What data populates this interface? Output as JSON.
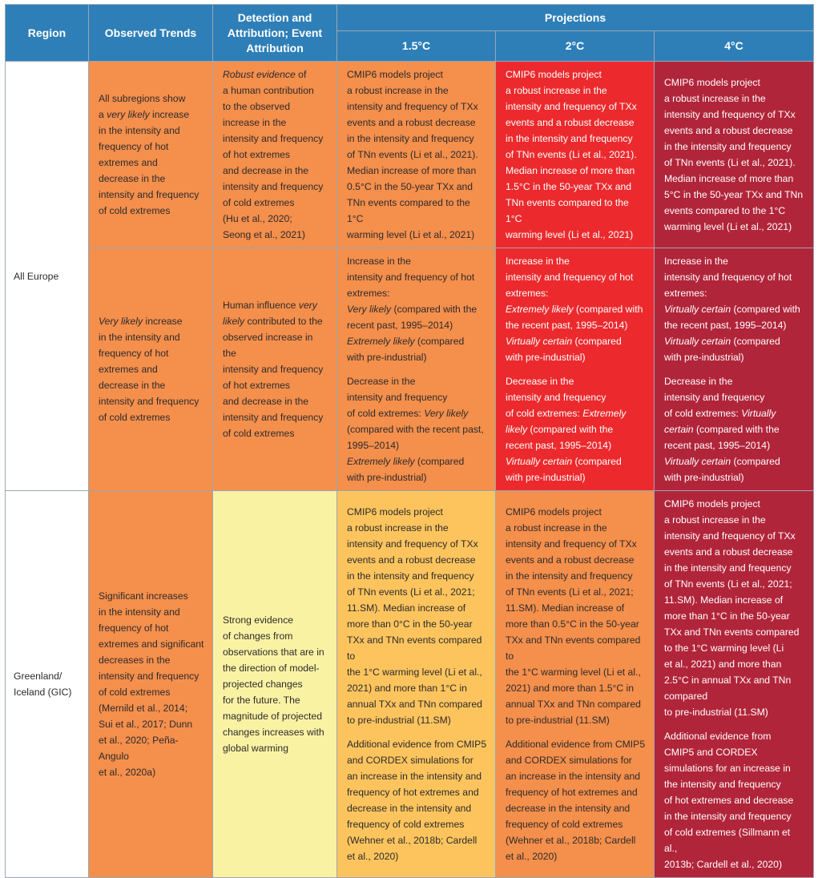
{
  "headers": {
    "region": "Region",
    "observed": "Observed Trends",
    "detection": "Detection and Attribution; Event Attribution",
    "projections": "Projections",
    "w15": "1.5°C",
    "w2": "2°C",
    "w4": "4°C"
  },
  "colors": {
    "header": "#2e7fb8",
    "orange": "#f58f4c",
    "red": "#ec2a2e",
    "dark_red": "#b1253a",
    "light_yellow": "#faf2a3",
    "gold": "#fdc45e"
  },
  "rows": {
    "all_europe": {
      "region": "All Europe",
      "r1": {
        "observed": [
          {
            "t": "All subregions show\na "
          },
          {
            "t": "very likely",
            "i": true
          },
          {
            "t": " increase\nin the intensity and\nfrequency of hot\nextremes and\ndecrease in the\nintensity and frequency\nof cold extremes"
          }
        ],
        "detection": [
          {
            "t": "Robust evidence",
            "i": true
          },
          {
            "t": " of\na human contribution\nto the observed\nincrease in the\nintensity and frequency\nof hot extremes\nand decrease in the\nintensity and frequency\nof cold extremes\n(Hu et al., 2020;\nSeong et al., 2021)"
          }
        ],
        "w15": [
          [
            {
              "t": "CMIP6 models project\na robust increase in the\nintensity and frequency of TXx\nevents and a robust decrease\nin the intensity and frequency\nof TNn events (Li et al., 2021).\nMedian increase of more than\n0.5°C in the 50-year TXx and\nTNn events compared to the 1°C\nwarming level (Li et al., 2021)"
            }
          ]
        ],
        "w2": [
          [
            {
              "t": "CMIP6 models project\na robust increase in the\nintensity and frequency of TXx\nevents and a robust decrease\nin the intensity and frequency\nof TNn events (Li et al., 2021).\nMedian increase of more than\n1.5°C in the 50-year TXx and\nTNn events compared to the 1°C\nwarming level (Li et al., 2021)"
            }
          ]
        ],
        "w4": [
          [
            {
              "t": "CMIP6 models project\na robust increase in the\nintensity and frequency of TXx\nevents and a robust decrease\nin the intensity and frequency\nof TNn events (Li et al., 2021).\nMedian increase of more than\n5°C in the 50-year TXx and TNn\nevents compared to the 1°C\nwarming level (Li et al., 2021)"
            }
          ]
        ]
      },
      "r2": {
        "observed": [
          {
            "t": "Very likely",
            "i": true
          },
          {
            "t": " increase\nin the intensity and\nfrequency of hot\nextremes and\ndecrease in the\nintensity and frequency\nof cold extremes"
          }
        ],
        "detection": [
          {
            "t": "Human influence "
          },
          {
            "t": "very\nlikely",
            "i": true
          },
          {
            "t": " contributed to the\nobserved increase in the\nintensity and frequency\nof hot extremes\nand decrease in the\nintensity and frequency\nof cold extremes"
          }
        ],
        "w15": [
          [
            {
              "t": "Increase in the\nintensity and frequency of hot\nextremes:\n"
            },
            {
              "t": "Very likely",
              "i": true
            },
            {
              "t": " (compared with the\nrecent past, 1995–2014)\n"
            },
            {
              "t": "Extremely likely",
              "i": true
            },
            {
              "t": " (compared\nwith pre-industrial)"
            }
          ],
          [
            {
              "t": "Decrease in the\nintensity and frequency\nof cold extremes: "
            },
            {
              "t": "Very likely",
              "i": true
            },
            {
              "t": "\n(compared with the recent past,\n1995–2014)\n"
            },
            {
              "t": "Extremely likely",
              "i": true
            },
            {
              "t": " (compared\nwith pre-industrial)"
            }
          ]
        ],
        "w2": [
          [
            {
              "t": "Increase in the\nintensity and frequency of hot\nextremes:\n"
            },
            {
              "t": "Extremely likely",
              "i": true
            },
            {
              "t": " (compared with\nthe recent past, 1995–2014)\n"
            },
            {
              "t": "Virtually certain",
              "i": true
            },
            {
              "t": " (compared\nwith pre-industrial)"
            }
          ],
          [
            {
              "t": "Decrease in the\nintensity and frequency\nof cold extremes: "
            },
            {
              "t": "Extremely\nlikely",
              "i": true
            },
            {
              "t": " (compared with the\nrecent past, 1995–2014)\n"
            },
            {
              "t": "Virtually certain",
              "i": true
            },
            {
              "t": " (compared\nwith pre-industrial)"
            }
          ]
        ],
        "w4": [
          [
            {
              "t": "Increase in the\nintensity and frequency of hot\nextremes:\n"
            },
            {
              "t": "Virtually certain",
              "i": true
            },
            {
              "t": " (compared with\nthe recent past, 1995–2014)\n"
            },
            {
              "t": "Virtually certain",
              "i": true
            },
            {
              "t": " (compared\nwith pre-industrial)"
            }
          ],
          [
            {
              "t": "Decrease in the\nintensity and frequency\nof cold extremes: "
            },
            {
              "t": "Virtually\ncertain",
              "i": true
            },
            {
              "t": " (compared with the\nrecent past, 1995–2014)\n"
            },
            {
              "t": "Virtually certain",
              "i": true
            },
            {
              "t": " (compared\nwith pre-industrial)"
            }
          ]
        ]
      }
    },
    "gic": {
      "region": "Greenland/\nIceland (GIC)",
      "observed": [
        {
          "t": "Significant increases\nin the intensity and\nfrequency of hot\nextremes and significant\ndecreases in the\nintensity and frequency\nof cold extremes\n(Mernild et al., 2014;\nSui et al., 2017; Dunn\net al., 2020; Peña-Angulo\net al., 2020a)"
        }
      ],
      "detection": [
        {
          "t": "Strong evidence\nof changes from\nobservations that are in\nthe direction of model-\nprojected changes\nfor the future. The\nmagnitude of projected\nchanges increases with\nglobal warming"
        }
      ],
      "w15": [
        [
          {
            "t": "CMIP6 models project\na robust increase in the\nintensity and frequency of TXx\nevents and a robust decrease\nin the intensity and frequency\nof TNn events (Li et al., 2021;\n11.SM). Median increase of\nmore than 0°C in the 50-year\nTXx and TNn events compared to\nthe 1°C warming level (Li et al.,\n2021) and more than 1°C in\nannual TXx and TNn compared\nto pre-industrial (11.SM)"
          }
        ],
        [
          {
            "t": "Additional evidence from CMIP5\nand CORDEX simulations for\nan increase in the intensity and\nfrequency of hot extremes and\ndecrease in the intensity and\nfrequency of cold extremes\n(Wehner et al., 2018b; Cardell\net al., 2020)"
          }
        ]
      ],
      "w2": [
        [
          {
            "t": "CMIP6 models project\na robust increase in the\nintensity and frequency of TXx\nevents and a robust decrease\nin the intensity and frequency\nof TNn events (Li et al., 2021;\n11.SM). Median increase of\nmore than 0.5°C in the 50-year\nTXx and TNn events compared to\nthe 1°C warming level (Li et al.,\n2021) and more than 1.5°C in\nannual TXx and TNn compared\nto pre-industrial (11.SM)"
          }
        ],
        [
          {
            "t": "Additional evidence from CMIP5\nand CORDEX simulations for\nan increase in the intensity and\nfrequency of hot extremes and\ndecrease in the intensity and\nfrequency of cold extremes\n(Wehner et al., 2018b; Cardell\net al., 2020)"
          }
        ]
      ],
      "w4": [
        [
          {
            "t": "CMIP6 models project\na robust increase in the\nintensity and frequency of TXx\nevents and a robust decrease\nin the intensity and frequency\nof TNn events (Li et al., 2021;\n11.SM). Median increase of\nmore than 1°C in the 50-year\nTXx and TNn events compared\nto the 1°C warming level (Li\net al., 2021) and more than\n2.5°C in annual TXx and TNn\ncompared\nto pre-industrial (11.SM)"
          }
        ],
        [
          {
            "t": "Additional evidence from\nCMIP5 and CORDEX\nsimulations for an increase in\nthe intensity and frequency\nof hot extremes and decrease\nin the intensity and frequency\nof cold extremes (Sillmann et al.,\n2013b; Cardell et al., 2020)"
          }
        ]
      ]
    }
  }
}
